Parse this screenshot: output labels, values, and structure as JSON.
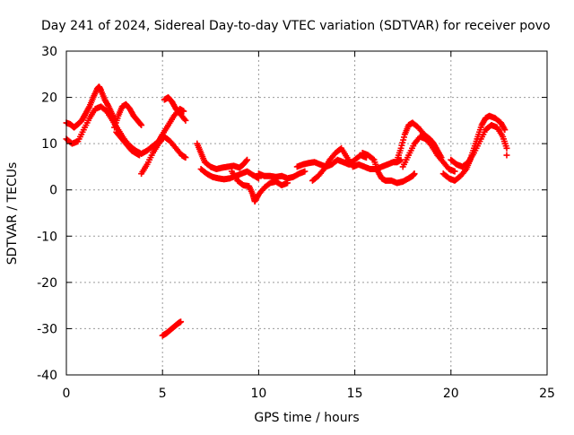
{
  "chart_data": {
    "type": "scatter",
    "title": "Day 241 of 2024, Sidereal Day-to-day VTEC variation (SDTVAR) for receiver povo",
    "xlabel": "GPS time / hours",
    "ylabel": "SDTVAR / TECUs",
    "xlim": [
      0,
      25
    ],
    "ylim": [
      -40,
      30
    ],
    "xticks": [
      0,
      5,
      10,
      15,
      20,
      25
    ],
    "yticks": [
      -40,
      -30,
      -20,
      -10,
      0,
      10,
      20,
      30
    ],
    "xtick_labels": [
      "0",
      "5",
      "10",
      "15",
      "20",
      "25"
    ],
    "ytick_labels": [
      "-40",
      "-30",
      "-20",
      "-10",
      "0",
      "10",
      "20",
      "30"
    ],
    "grid": true,
    "marker": "+",
    "series_color": "#ff0000",
    "series": [
      {
        "name": "SDTVAR",
        "points": [
          [
            0.0,
            14.5
          ],
          [
            0.2,
            14.2
          ],
          [
            0.4,
            13.5
          ],
          [
            0.6,
            14.2
          ],
          [
            0.8,
            15.0
          ],
          [
            1.0,
            16.5
          ],
          [
            1.2,
            18.0
          ],
          [
            1.4,
            20.0
          ],
          [
            1.6,
            21.8
          ],
          [
            1.7,
            22.3
          ],
          [
            1.8,
            21.5
          ],
          [
            2.0,
            19.5
          ],
          [
            2.2,
            18.0
          ],
          [
            2.4,
            16.2
          ],
          [
            2.5,
            15.0
          ],
          [
            0.0,
            11.0
          ],
          [
            0.3,
            10.0
          ],
          [
            0.6,
            10.5
          ],
          [
            0.9,
            13.0
          ],
          [
            1.2,
            15.5
          ],
          [
            1.5,
            17.5
          ],
          [
            1.8,
            18.0
          ],
          [
            2.1,
            17.0
          ],
          [
            2.4,
            15.0
          ],
          [
            2.7,
            13.0
          ],
          [
            3.0,
            11.0
          ],
          [
            3.3,
            9.5
          ],
          [
            3.6,
            8.5
          ],
          [
            3.9,
            7.8
          ],
          [
            4.2,
            8.5
          ],
          [
            4.5,
            9.5
          ],
          [
            4.8,
            10.5
          ],
          [
            5.0,
            12.0
          ],
          [
            5.3,
            14.0
          ],
          [
            5.6,
            16.0
          ],
          [
            5.9,
            17.5
          ],
          [
            6.1,
            17.0
          ],
          [
            3.9,
            3.5
          ],
          [
            4.2,
            5.5
          ],
          [
            4.5,
            8.0
          ],
          [
            4.8,
            10.0
          ],
          [
            5.1,
            11.5
          ],
          [
            5.4,
            10.5
          ],
          [
            5.7,
            9.0
          ],
          [
            6.0,
            7.5
          ],
          [
            6.2,
            7.0
          ],
          [
            2.5,
            13.5
          ],
          [
            2.7,
            16.0
          ],
          [
            2.9,
            18.0
          ],
          [
            3.1,
            18.5
          ],
          [
            3.3,
            17.5
          ],
          [
            3.5,
            16.0
          ],
          [
            3.7,
            15.0
          ],
          [
            3.9,
            14.0
          ],
          [
            5.1,
            19.5
          ],
          [
            5.3,
            20.0
          ],
          [
            5.5,
            19.0
          ],
          [
            5.7,
            17.5
          ],
          [
            5.9,
            16.5
          ],
          [
            6.2,
            15.0
          ],
          [
            2.6,
            12.5
          ],
          [
            2.8,
            11.5
          ],
          [
            3.0,
            10.5
          ],
          [
            3.2,
            9.5
          ],
          [
            3.4,
            8.5
          ],
          [
            3.6,
            8.0
          ],
          [
            3.8,
            7.5
          ],
          [
            5.0,
            -31.5
          ],
          [
            5.2,
            -31.0
          ],
          [
            5.4,
            -30.3
          ],
          [
            5.6,
            -29.6
          ],
          [
            5.8,
            -28.9
          ],
          [
            5.95,
            -28.5
          ],
          [
            6.8,
            10.0
          ],
          [
            7.0,
            8.0
          ],
          [
            7.2,
            6.0
          ],
          [
            7.5,
            5.0
          ],
          [
            7.8,
            4.5
          ],
          [
            8.1,
            4.8
          ],
          [
            8.4,
            5.0
          ],
          [
            8.7,
            5.2
          ],
          [
            9.0,
            4.8
          ],
          [
            9.2,
            5.5
          ],
          [
            9.4,
            6.5
          ],
          [
            7.0,
            4.5
          ],
          [
            7.3,
            3.5
          ],
          [
            7.6,
            2.8
          ],
          [
            7.9,
            2.5
          ],
          [
            8.2,
            2.3
          ],
          [
            8.5,
            2.5
          ],
          [
            8.8,
            3.0
          ],
          [
            9.1,
            3.5
          ],
          [
            9.4,
            4.0
          ],
          [
            9.7,
            3.2
          ],
          [
            10.0,
            2.5
          ],
          [
            8.6,
            4.0
          ],
          [
            8.9,
            2.0
          ],
          [
            9.2,
            1.0
          ],
          [
            9.5,
            0.8
          ],
          [
            9.7,
            -1.0
          ],
          [
            9.8,
            -2.5
          ],
          [
            10.0,
            -1.0
          ],
          [
            10.3,
            0.5
          ],
          [
            10.6,
            1.5
          ],
          [
            10.9,
            1.8
          ],
          [
            11.2,
            1.0
          ],
          [
            11.5,
            1.5
          ],
          [
            10.0,
            3.5
          ],
          [
            10.3,
            3.0
          ],
          [
            10.6,
            3.0
          ],
          [
            10.9,
            2.8
          ],
          [
            11.2,
            3.0
          ],
          [
            11.5,
            2.5
          ],
          [
            11.8,
            2.8
          ],
          [
            12.1,
            3.5
          ],
          [
            12.4,
            4.0
          ],
          [
            12.0,
            5.0
          ],
          [
            12.3,
            5.5
          ],
          [
            12.6,
            5.8
          ],
          [
            12.9,
            6.0
          ],
          [
            13.2,
            5.5
          ],
          [
            13.5,
            5.0
          ],
          [
            13.8,
            5.5
          ],
          [
            14.1,
            6.5
          ],
          [
            14.4,
            6.0
          ],
          [
            14.7,
            5.5
          ],
          [
            15.0,
            6.5
          ],
          [
            15.3,
            7.5
          ],
          [
            15.6,
            7.0
          ],
          [
            12.8,
            2.0
          ],
          [
            13.1,
            3.0
          ],
          [
            13.4,
            4.5
          ],
          [
            13.7,
            6.5
          ],
          [
            14.0,
            8.0
          ],
          [
            14.3,
            9.0
          ],
          [
            14.6,
            7.0
          ],
          [
            14.9,
            5.0
          ],
          [
            15.2,
            5.5
          ],
          [
            15.5,
            5.0
          ],
          [
            15.8,
            4.5
          ],
          [
            16.1,
            4.5
          ],
          [
            16.4,
            5.0
          ],
          [
            16.7,
            5.5
          ],
          [
            17.0,
            6.0
          ],
          [
            17.2,
            6.0
          ],
          [
            17.4,
            6.5
          ],
          [
            15.4,
            8.0
          ],
          [
            15.7,
            7.5
          ],
          [
            16.0,
            6.5
          ],
          [
            16.2,
            4.0
          ],
          [
            16.4,
            2.5
          ],
          [
            16.6,
            2.0
          ],
          [
            16.9,
            2.0
          ],
          [
            17.2,
            1.5
          ],
          [
            17.5,
            1.8
          ],
          [
            17.8,
            2.5
          ],
          [
            18.0,
            3.0
          ],
          [
            18.1,
            3.5
          ],
          [
            17.2,
            6.5
          ],
          [
            17.4,
            9.0
          ],
          [
            17.6,
            12.0
          ],
          [
            17.8,
            14.0
          ],
          [
            18.0,
            14.5
          ],
          [
            18.3,
            13.5
          ],
          [
            18.6,
            12.0
          ],
          [
            18.9,
            11.0
          ],
          [
            19.1,
            10.0
          ],
          [
            19.3,
            8.5
          ],
          [
            19.5,
            7.0
          ],
          [
            17.5,
            5.0
          ],
          [
            17.8,
            7.5
          ],
          [
            18.1,
            10.0
          ],
          [
            18.4,
            11.5
          ],
          [
            18.7,
            11.0
          ],
          [
            19.0,
            9.5
          ],
          [
            19.3,
            7.5
          ],
          [
            19.6,
            6.0
          ],
          [
            19.9,
            4.5
          ],
          [
            20.2,
            4.0
          ],
          [
            19.6,
            3.5
          ],
          [
            19.9,
            2.5
          ],
          [
            20.2,
            2.0
          ],
          [
            20.5,
            3.0
          ],
          [
            20.8,
            4.5
          ],
          [
            21.0,
            6.5
          ],
          [
            21.2,
            9.0
          ],
          [
            21.4,
            11.5
          ],
          [
            21.6,
            14.0
          ],
          [
            21.8,
            15.5
          ],
          [
            22.0,
            16.0
          ],
          [
            22.3,
            15.5
          ],
          [
            22.6,
            14.5
          ],
          [
            22.8,
            13.0
          ],
          [
            20.0,
            6.5
          ],
          [
            20.3,
            5.5
          ],
          [
            20.6,
            5.0
          ],
          [
            20.9,
            6.0
          ],
          [
            21.2,
            8.0
          ],
          [
            21.5,
            10.5
          ],
          [
            21.8,
            13.0
          ],
          [
            22.1,
            14.0
          ],
          [
            22.4,
            13.5
          ],
          [
            22.7,
            11.5
          ],
          [
            22.9,
            9.0
          ],
          [
            22.9,
            7.5
          ]
        ]
      }
    ]
  }
}
